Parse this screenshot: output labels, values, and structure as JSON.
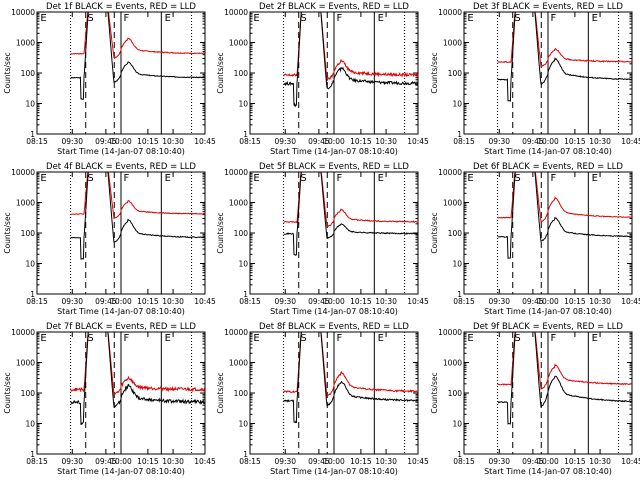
{
  "colors": {
    "events": "#000000",
    "lld": "#e00000",
    "axis": "#000000"
  },
  "shared": {
    "xlabel": "Start Time (14-Jan-07 08:10:40)",
    "ylabel": "Counts/sec",
    "x_ticks": [
      "08:15",
      "09:30",
      "09:45",
      "10:00",
      "10:15",
      "10:30",
      "10:45"
    ],
    "y_ticks": [
      "1",
      "10",
      "100",
      "1000",
      "10000"
    ],
    "y_scale": "log",
    "ylim": [
      1,
      10000
    ]
  },
  "chart_data": [
    {
      "type": "line",
      "title": "Det 1f  BLACK = Events, RED = LLD",
      "markers": [
        "E",
        "S",
        "F",
        "E"
      ],
      "black_base": 70,
      "red_base": 430,
      "black_bump": 200,
      "red_bump": 1200,
      "noise": 0.03
    },
    {
      "type": "line",
      "title": "Det 2f  BLACK = Events, RED = LLD",
      "markers": [
        "E",
        "S",
        "F",
        "E"
      ],
      "black_base": 45,
      "red_base": 85,
      "black_bump": 130,
      "red_bump": 220,
      "noise": 0.1
    },
    {
      "type": "line",
      "title": "Det 3f  BLACK = Events, RED = LLD",
      "markers": [
        "E",
        "S",
        "F",
        "E"
      ],
      "black_base": 60,
      "red_base": 230,
      "black_bump": 250,
      "red_bump": 550,
      "noise": 0.04
    },
    {
      "type": "line",
      "title": "Det 4f  BLACK = Events, RED = LLD",
      "markers": [
        "E",
        "S",
        "F",
        "E"
      ],
      "black_base": 70,
      "red_base": 420,
      "black_bump": 230,
      "red_bump": 1000,
      "noise": 0.03
    },
    {
      "type": "line",
      "title": "Det 5f  BLACK = Events, RED = LLD",
      "markers": [
        "E",
        "S",
        "F",
        "E"
      ],
      "black_base": 95,
      "red_base": 230,
      "black_bump": 180,
      "red_bump": 520,
      "noise": 0.04
    },
    {
      "type": "line",
      "title": "Det 6f  BLACK = Events, RED = LLD",
      "markers": [
        "E",
        "S",
        "F",
        "E"
      ],
      "black_base": 75,
      "red_base": 320,
      "black_bump": 270,
      "red_bump": 1200,
      "noise": 0.03
    },
    {
      "type": "line",
      "title": "Det 7f  BLACK = Events, RED = LLD",
      "markers": [
        "E",
        "S",
        "F",
        "E"
      ],
      "black_base": 50,
      "red_base": 130,
      "black_bump": 150,
      "red_bump": 280,
      "noise": 0.12
    },
    {
      "type": "line",
      "title": "Det 8f  BLACK = Events, RED = LLD",
      "markers": [
        "E",
        "S",
        "F",
        "E"
      ],
      "black_base": 55,
      "red_base": 110,
      "black_bump": 200,
      "red_bump": 400,
      "noise": 0.06
    },
    {
      "type": "line",
      "title": "Det 9f  BLACK = Events, RED = LLD",
      "markers": [
        "E",
        "S",
        "F",
        "E"
      ],
      "black_base": 50,
      "red_base": 190,
      "black_bump": 300,
      "red_bump": 700,
      "noise": 0.04
    }
  ]
}
